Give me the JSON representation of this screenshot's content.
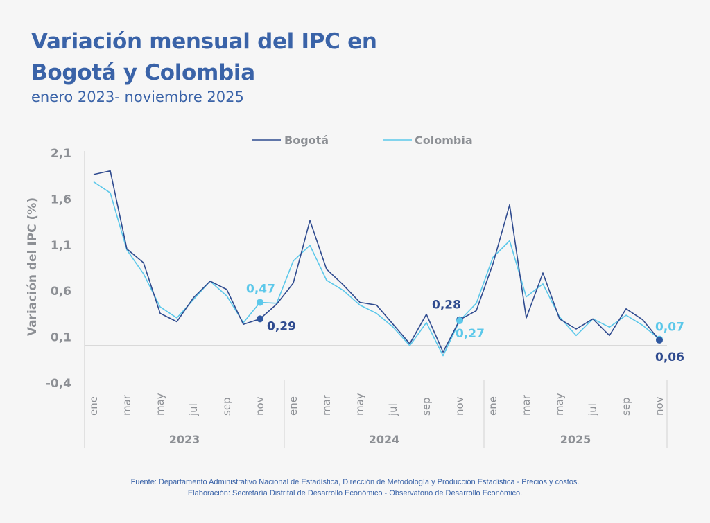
{
  "header": {
    "title": "Variación mensual del IPC en Bogotá y Colombia",
    "title_line1": "Variación mensual del IPC en",
    "title_line2": "Bogotá y Colombia",
    "subtitle": "enero 2023- noviembre 2025"
  },
  "colors": {
    "title": "#3a63a8",
    "bogota": "#2f4b8f",
    "colombia": "#5cc8ea",
    "axis_text": "#8c8f94",
    "background": "#f6f6f6"
  },
  "footer": {
    "source": "Fuente: Departamento Administrativo Nacional de Estadística, Dirección de Metodología y Producción Estadística - Precios y costos.",
    "elaboration": "Elaboración: Secretaría Distrital de Desarrollo Económico - Observatorio de Desarrollo Económico."
  },
  "chart_data": {
    "type": "line",
    "title": "Variación mensual del IPC en Bogotá y Colombia",
    "subtitle": "enero 2023- noviembre 2025",
    "xlabel": "",
    "ylabel": "Variación del IPC (%)",
    "ylim": [
      -0.4,
      2.1
    ],
    "yticks": [
      "2,1",
      "1,6",
      "1,1",
      "0,6",
      "0,1",
      "-0,4"
    ],
    "ytick_values": [
      2.1,
      1.6,
      1.1,
      0.6,
      0.1,
      -0.4
    ],
    "grid": false,
    "legend_position": "top-center",
    "x": [
      "ene 2023",
      "feb 2023",
      "mar 2023",
      "abr 2023",
      "may 2023",
      "jun 2023",
      "jul 2023",
      "ago 2023",
      "sep 2023",
      "oct 2023",
      "nov 2023",
      "dic 2023",
      "ene 2024",
      "feb 2024",
      "mar 2024",
      "abr 2024",
      "may 2024",
      "jun 2024",
      "jul 2024",
      "ago 2024",
      "sep 2024",
      "oct 2024",
      "nov 2024",
      "dic 2024",
      "ene 2025",
      "feb 2025",
      "mar 2025",
      "abr 2025",
      "may 2025",
      "jun 2025",
      "jul 2025",
      "ago 2025",
      "sep 2025",
      "oct 2025",
      "nov 2025"
    ],
    "month_tick_labels": [
      "ene",
      "mar",
      "may",
      "jul",
      "sep",
      "nov"
    ],
    "year_labels": [
      "2023",
      "2024",
      "2025"
    ],
    "series": [
      {
        "name": "Bogotá",
        "color": "#2f4b8f",
        "values": [
          1.86,
          1.9,
          1.05,
          0.9,
          0.35,
          0.26,
          0.52,
          0.7,
          0.61,
          0.23,
          0.29,
          0.45,
          0.68,
          1.36,
          0.83,
          0.66,
          0.47,
          0.44,
          0.23,
          0.02,
          0.34,
          -0.07,
          0.28,
          0.38,
          0.89,
          1.53,
          0.3,
          0.79,
          0.29,
          0.18,
          0.29,
          0.11,
          0.4,
          0.28,
          0.06
        ]
      },
      {
        "name": "Colombia",
        "color": "#5cc8ea",
        "values": [
          1.78,
          1.66,
          1.04,
          0.78,
          0.42,
          0.3,
          0.5,
          0.7,
          0.54,
          0.25,
          0.47,
          0.46,
          0.92,
          1.09,
          0.71,
          0.6,
          0.44,
          0.35,
          0.2,
          0.0,
          0.25,
          -0.11,
          0.27,
          0.46,
          0.96,
          1.14,
          0.53,
          0.67,
          0.31,
          0.11,
          0.29,
          0.2,
          0.33,
          0.22,
          0.07
        ]
      }
    ],
    "annotations": [
      {
        "series": "Colombia",
        "x": "nov 2023",
        "text": "0,47"
      },
      {
        "series": "Bogotá",
        "x": "nov 2023",
        "text": "0,29"
      },
      {
        "series": "Bogotá",
        "x": "nov 2024",
        "text": "0,28"
      },
      {
        "series": "Colombia",
        "x": "nov 2024",
        "text": "0,27"
      },
      {
        "series": "Colombia",
        "x": "nov 2025",
        "text": "0,07"
      },
      {
        "series": "Bogotá",
        "x": "nov 2025",
        "text": "0,06"
      }
    ]
  }
}
